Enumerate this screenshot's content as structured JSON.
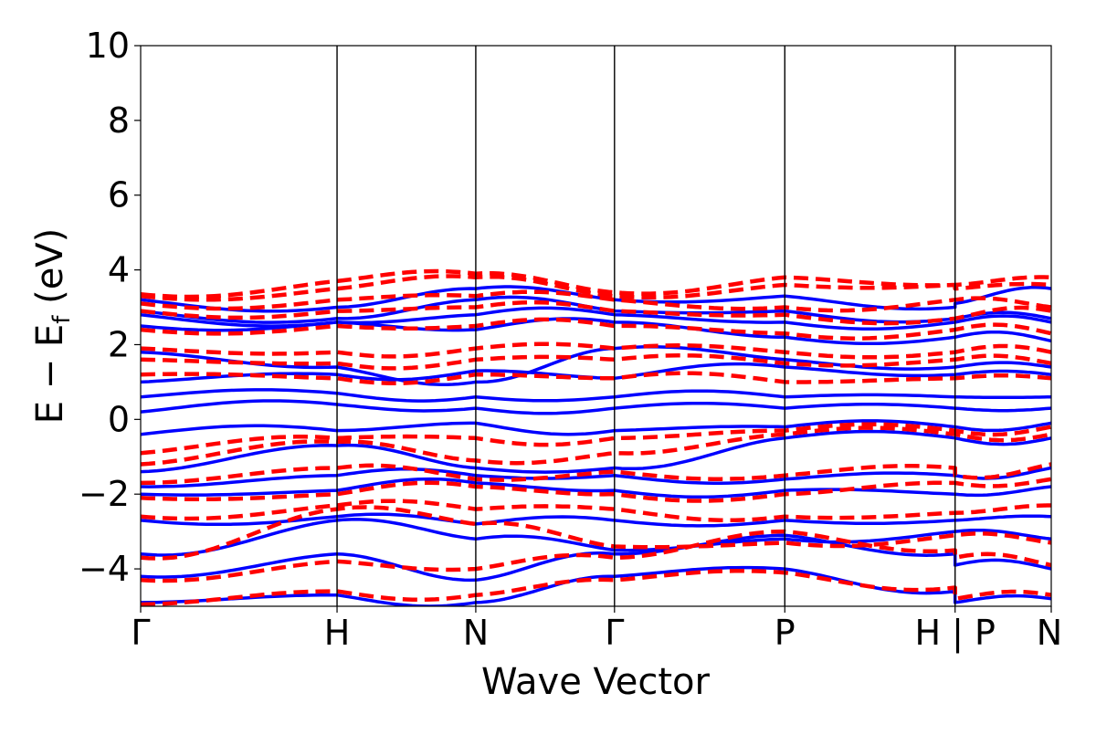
{
  "chart_data": {
    "type": "line",
    "title": "",
    "xlabel": "Wave Vector",
    "ylabel": {
      "main": "E − E",
      "sub": "f",
      "suffix": " (eV)"
    },
    "ylim": [
      -5,
      10
    ],
    "yticks": [
      "−4",
      "−2",
      "0",
      "2",
      "4",
      "6",
      "8",
      "10"
    ],
    "ytick_values": [
      -4,
      -2,
      0,
      2,
      4,
      6,
      8,
      10
    ],
    "xlim": [
      0,
      6.63
    ],
    "kpoints": [
      {
        "label": "Γ",
        "x": 0.0
      },
      {
        "label": "H",
        "x": 1.43
      },
      {
        "label": "N",
        "x": 2.44
      },
      {
        "label": "Γ",
        "x": 3.45
      },
      {
        "label": "P",
        "x": 4.69
      },
      {
        "label": "H",
        "x": 5.93
      },
      {
        "label": "P",
        "x": 5.93
      },
      {
        "label": "N",
        "x": 6.63
      }
    ],
    "kpoint_tick_labels": [
      "Γ",
      "H",
      "N",
      "Γ",
      "P",
      "H | P",
      "N"
    ],
    "kpoint_tick_positions": [
      0.0,
      1.43,
      2.44,
      3.45,
      4.69,
      5.93,
      6.63
    ],
    "grid": false,
    "series": [
      {
        "style": "solid",
        "color": "#0000ff",
        "bands_at_kpoints": [
          [
            -4.9,
            -4.7,
            -4.9,
            -4.2,
            -4.0,
            -4.6,
            -4.9,
            -4.8
          ],
          [
            -4.2,
            -3.6,
            -4.3,
            -3.6,
            -3.1,
            -3.6,
            -3.9,
            -4.0
          ],
          [
            -3.6,
            -2.7,
            -3.2,
            -3.5,
            -3.2,
            -3.0,
            -3.0,
            -3.2
          ],
          [
            -2.7,
            -2.6,
            -2.8,
            -2.7,
            -2.7,
            -2.7,
            -2.7,
            -2.6
          ],
          [
            -2.0,
            -1.9,
            -1.7,
            -1.9,
            -1.9,
            -2.0,
            -2.0,
            -1.8
          ],
          [
            -1.8,
            -1.5,
            -1.5,
            -1.5,
            -1.6,
            -1.5,
            -1.5,
            -1.3
          ],
          [
            -1.4,
            -0.7,
            -1.3,
            -1.3,
            -0.5,
            -0.5,
            -0.5,
            -0.5
          ],
          [
            -0.4,
            -0.3,
            -0.1,
            -0.3,
            -0.2,
            -0.2,
            -0.2,
            -0.1
          ],
          [
            0.2,
            0.4,
            0.3,
            0.3,
            0.3,
            0.3,
            0.3,
            0.3
          ],
          [
            0.6,
            0.7,
            0.6,
            0.6,
            0.6,
            0.6,
            0.6,
            0.6
          ],
          [
            1.0,
            1.2,
            1.3,
            1.1,
            1.4,
            1.2,
            1.2,
            1.2
          ],
          [
            1.8,
            1.4,
            1.0,
            1.9,
            1.6,
            1.4,
            1.4,
            1.4
          ],
          [
            2.5,
            2.6,
            2.4,
            2.6,
            2.2,
            2.2,
            2.2,
            2.1
          ],
          [
            2.8,
            2.6,
            2.8,
            2.8,
            2.6,
            2.6,
            2.6,
            2.6
          ],
          [
            2.9,
            2.7,
            3.2,
            2.9,
            2.9,
            2.7,
            2.7,
            2.7
          ],
          [
            3.2,
            3.0,
            3.5,
            3.2,
            3.3,
            3.0,
            3.1,
            3.5
          ]
        ]
      },
      {
        "style": "dashed",
        "color": "#ff0000",
        "bands_at_kpoints": [
          [
            -4.95,
            -4.6,
            -4.7,
            -4.3,
            -4.1,
            -4.5,
            -4.8,
            -4.7
          ],
          [
            -4.3,
            -3.8,
            -4.0,
            -3.7,
            -3.0,
            -3.5,
            -3.7,
            -3.9
          ],
          [
            -3.7,
            -2.4,
            -2.8,
            -3.4,
            -3.3,
            -3.1,
            -3.1,
            -3.3
          ],
          [
            -2.6,
            -2.3,
            -2.4,
            -2.4,
            -2.6,
            -2.5,
            -2.5,
            -2.3
          ],
          [
            -2.1,
            -2.0,
            -1.8,
            -2.0,
            -2.0,
            -1.7,
            -1.7,
            -1.6
          ],
          [
            -1.7,
            -1.3,
            -1.6,
            -1.4,
            -1.5,
            -1.3,
            -1.5,
            -1.2
          ],
          [
            -1.2,
            -0.6,
            -1.1,
            -0.9,
            -0.4,
            -0.4,
            -0.4,
            -0.4
          ],
          [
            -0.9,
            -0.5,
            -0.5,
            -0.5,
            -0.3,
            -0.3,
            -0.3,
            -0.2
          ],
          [
            1.2,
            1.1,
            1.2,
            1.1,
            1.0,
            1.1,
            1.1,
            1.1
          ],
          [
            1.6,
            1.5,
            1.6,
            1.6,
            1.5,
            1.6,
            1.6,
            1.5
          ],
          [
            1.9,
            1.8,
            1.9,
            1.9,
            1.8,
            1.8,
            1.8,
            1.8
          ],
          [
            2.4,
            2.5,
            2.5,
            2.5,
            2.3,
            2.4,
            2.4,
            2.3
          ],
          [
            2.9,
            2.9,
            3.0,
            2.9,
            2.8,
            2.7,
            2.7,
            2.9
          ],
          [
            3.1,
            3.2,
            3.3,
            3.2,
            3.0,
            3.2,
            3.2,
            3.0
          ],
          [
            3.3,
            3.5,
            3.8,
            3.3,
            3.6,
            3.6,
            3.5,
            3.6
          ],
          [
            3.35,
            3.7,
            3.9,
            3.4,
            3.8,
            3.6,
            3.6,
            3.8
          ]
        ]
      }
    ]
  }
}
